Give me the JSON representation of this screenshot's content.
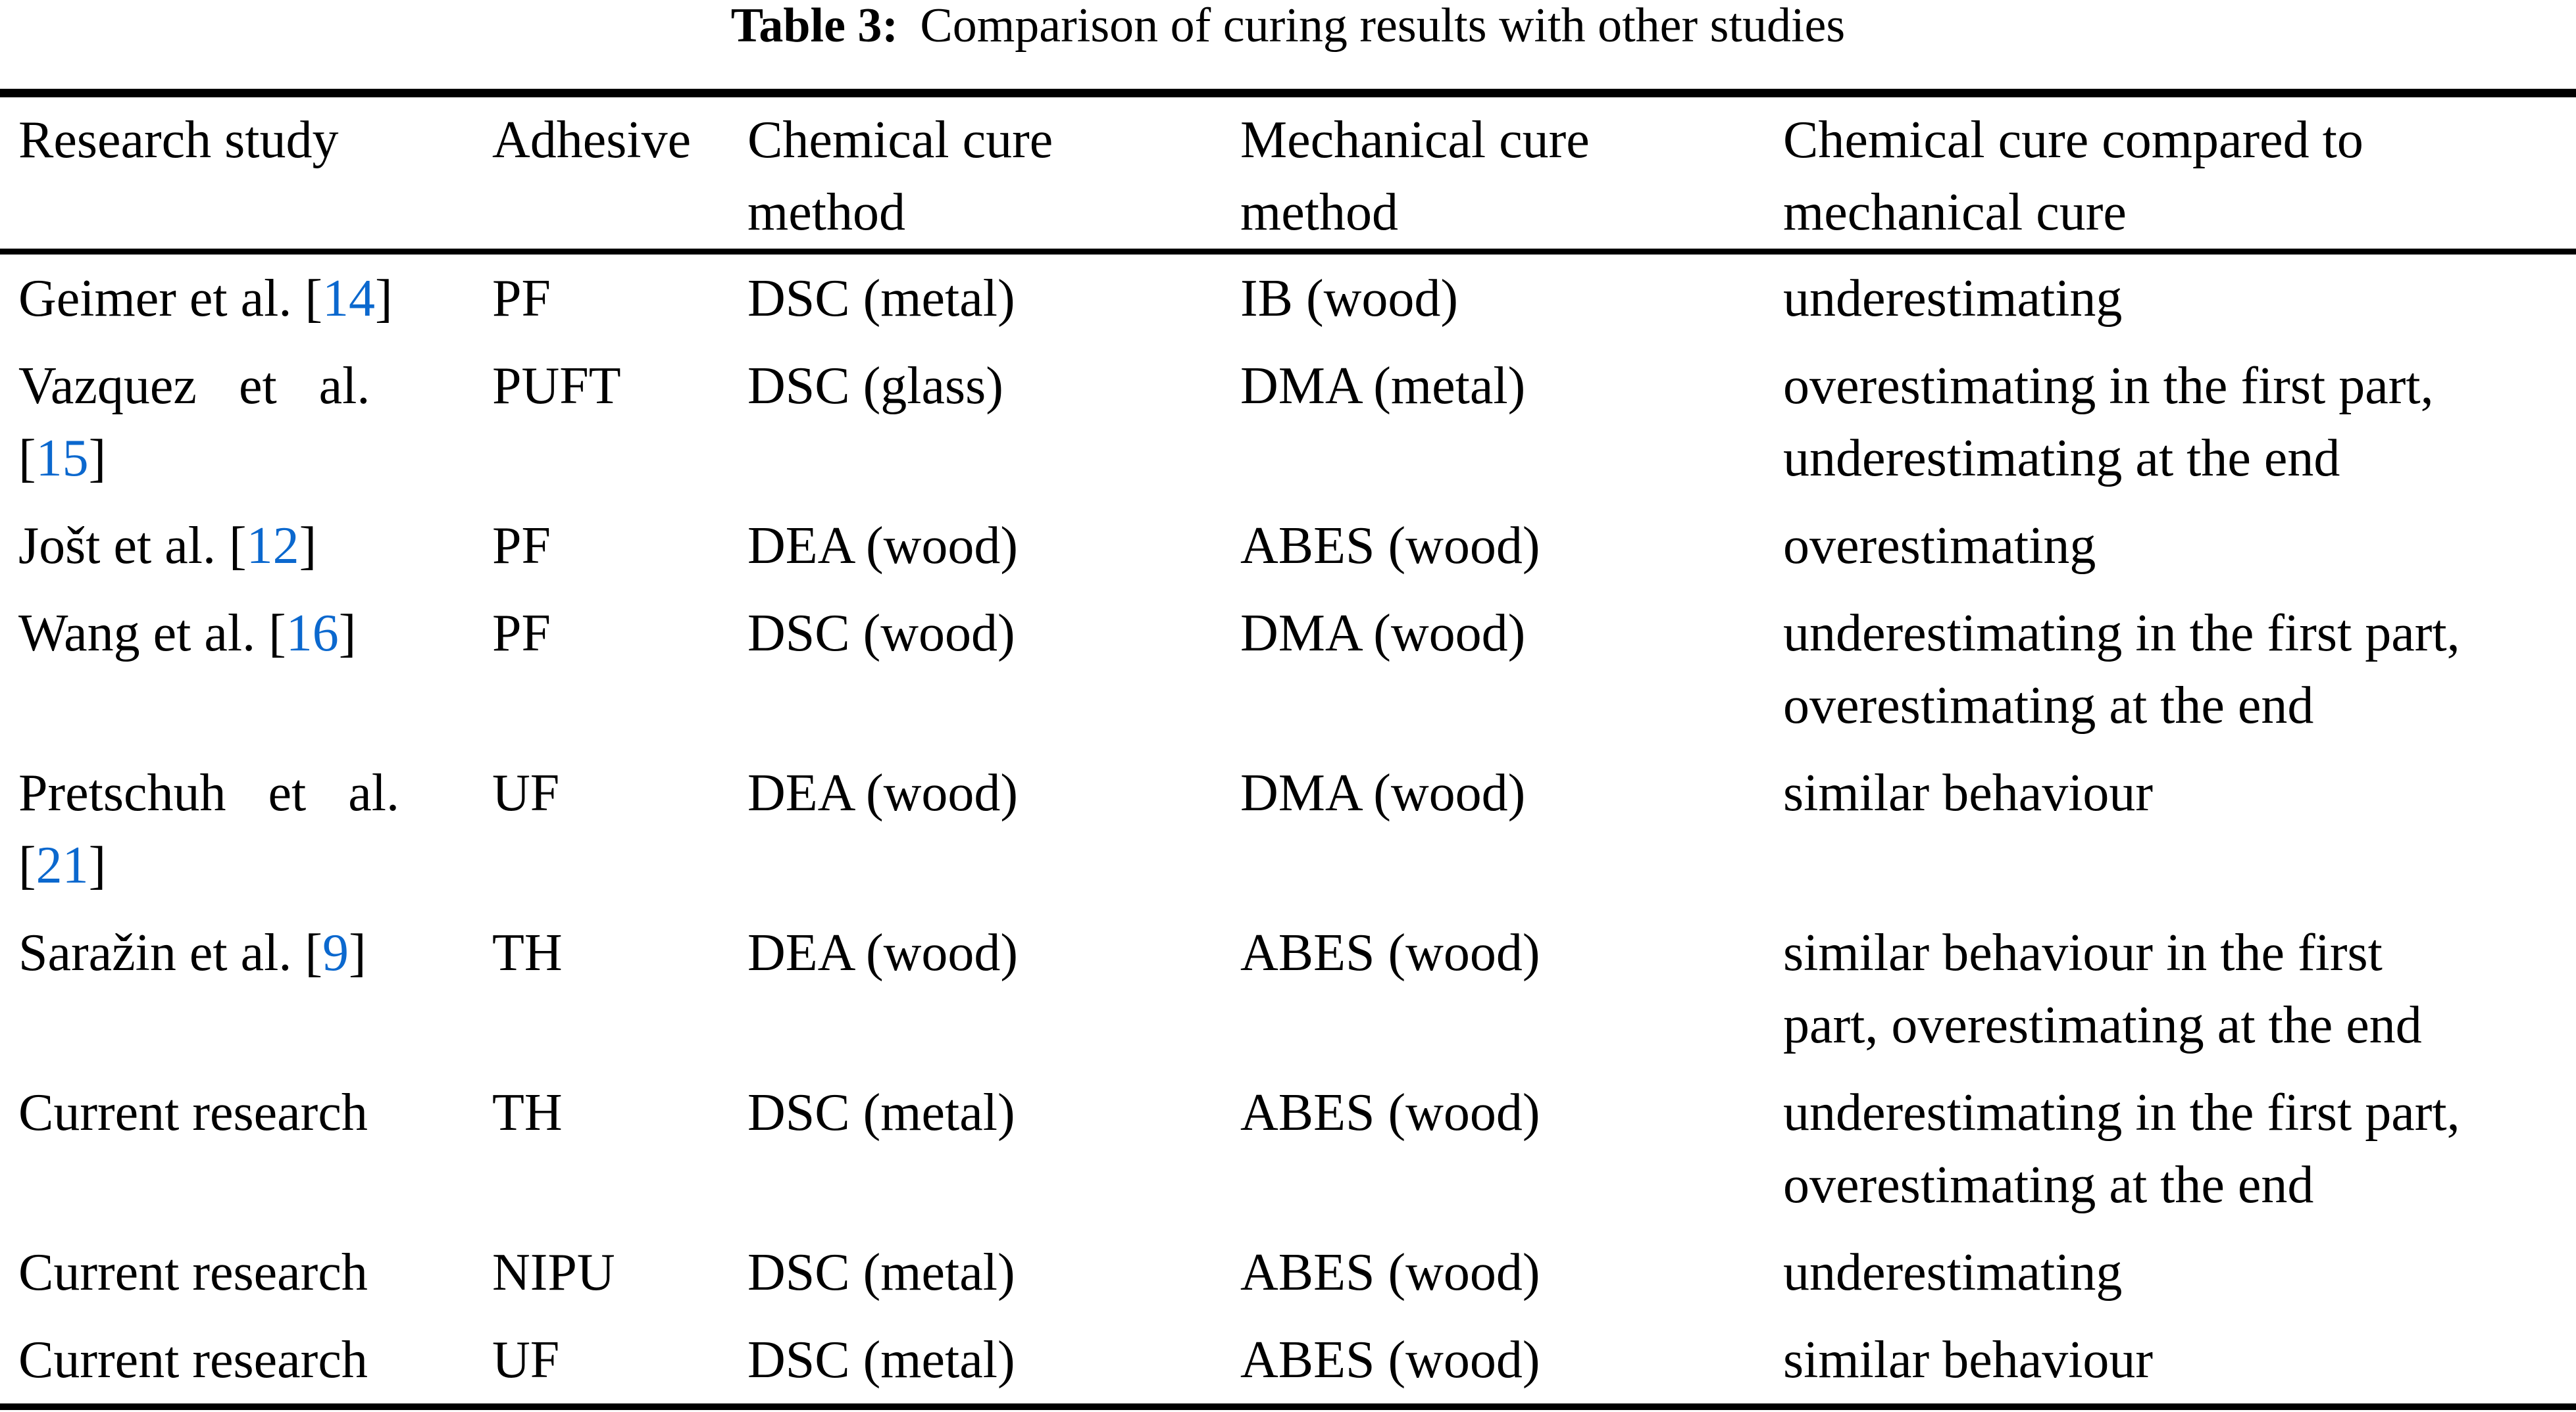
{
  "caption": {
    "label": "Table 3:",
    "text": "Comparison of curing results with other studies"
  },
  "colors": {
    "citation_link": "#0B68CE",
    "text": "#000000",
    "background": "#ffffff"
  },
  "table": {
    "headers": [
      {
        "id": "study",
        "label": "Research study"
      },
      {
        "id": "adhesive",
        "label": "Adhesive"
      },
      {
        "id": "chemical",
        "label": "Chemical cure\nmethod"
      },
      {
        "id": "mechanical",
        "label": "Mechanical cure\nmethod"
      },
      {
        "id": "comparison",
        "label": "Chemical cure compared to\nmechanical cure"
      }
    ],
    "rows": [
      {
        "study": [
          [
            {
              "text": "Geimer et al. ["
            },
            {
              "text": "14",
              "cite": true
            },
            {
              "text": "]"
            }
          ]
        ],
        "adhesive": "PF",
        "chemical": "DSC (metal)",
        "mechanical": "IB (wood)",
        "comparison": [
          "underestimating"
        ]
      },
      {
        "study": [
          [
            {
              "text": "Vazquez et al.",
              "wide": true
            }
          ],
          [
            {
              "text": "["
            },
            {
              "text": "15",
              "cite": true
            },
            {
              "text": "]"
            }
          ]
        ],
        "adhesive": "PUFT",
        "chemical": "DSC (glass)",
        "mechanical": "DMA (metal)",
        "comparison": [
          "overestimating in the first part,",
          "underestimating at the end"
        ]
      },
      {
        "study": [
          [
            {
              "text": "Jošt et al. ["
            },
            {
              "text": "12",
              "cite": true
            },
            {
              "text": "]"
            }
          ]
        ],
        "adhesive": "PF",
        "chemical": "DEA (wood)",
        "mechanical": "ABES (wood)",
        "comparison": [
          "overestimating"
        ]
      },
      {
        "study": [
          [
            {
              "text": "Wang et al. ["
            },
            {
              "text": "16",
              "cite": true
            },
            {
              "text": "]"
            }
          ]
        ],
        "adhesive": "PF",
        "chemical": "DSC (wood)",
        "mechanical": "DMA (wood)",
        "comparison": [
          "underestimating in the first part,",
          "overestimating at the end"
        ]
      },
      {
        "study": [
          [
            {
              "text": "Pretschuh et al.",
              "wide": true
            }
          ],
          [
            {
              "text": "["
            },
            {
              "text": "21",
              "cite": true
            },
            {
              "text": "]"
            }
          ]
        ],
        "adhesive": "UF",
        "chemical": "DEA (wood)",
        "mechanical": "DMA (wood)",
        "comparison": [
          "similar behaviour"
        ]
      },
      {
        "study": [
          [
            {
              "text": "Saražin et al. ["
            },
            {
              "text": "9",
              "cite": true
            },
            {
              "text": "]"
            }
          ]
        ],
        "adhesive": "TH",
        "chemical": "DEA (wood)",
        "mechanical": "ABES (wood)",
        "comparison": [
          "similar behaviour in the first",
          "part, overestimating at the end"
        ]
      },
      {
        "study": [
          [
            {
              "text": "Current research"
            }
          ]
        ],
        "adhesive": "TH",
        "chemical": "DSC (metal)",
        "mechanical": "ABES (wood)",
        "comparison": [
          "underestimating in the first part,",
          "overestimating at the end"
        ]
      },
      {
        "study": [
          [
            {
              "text": "Current research"
            }
          ]
        ],
        "adhesive": "NIPU",
        "chemical": "DSC (metal)",
        "mechanical": "ABES (wood)",
        "comparison": [
          "underestimating"
        ]
      },
      {
        "study": [
          [
            {
              "text": "Current research"
            }
          ]
        ],
        "adhesive": "UF",
        "chemical": "DSC (metal)",
        "mechanical": "ABES (wood)",
        "comparison": [
          "similar behaviour"
        ]
      }
    ]
  }
}
